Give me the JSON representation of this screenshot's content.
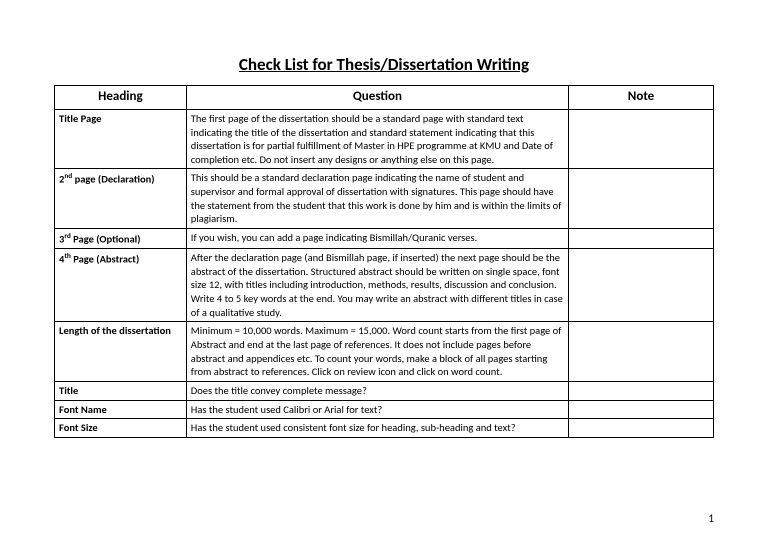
{
  "docTitle": "Check List for Thesis/Dissertation Writing",
  "columns": {
    "heading": "Heading",
    "question": "Question",
    "note": "Note"
  },
  "rows": [
    {
      "heading": "Title Page",
      "question": "The first page of the dissertation should be a standard page with standard text indicating the title of the dissertation and standard statement indicating that this dissertation is for partial fulfillment of Master in HPE programme at KMU and Date of completion etc.\nDo not insert any designs or anything else on this page."
    },
    {
      "heading": "2<sup>nd</sup> page (Declaration)",
      "question": "This should be a standard declaration page indicating the name of student and supervisor and formal approval of dissertation with signatures.\nThis page should have the statement from the student that this work is done by him and is within the limits of plagiarism."
    },
    {
      "heading": "3<sup>rd</sup> Page (Optional)",
      "question": "If you wish, you can add a page indicating Bismillah/Quranic verses."
    },
    {
      "heading": "4<sup>th</sup> Page (Abstract)",
      "question": "After the declaration page (and Bismillah page, if inserted) the next page should be the abstract of the dissertation. Structured abstract should be written on single space, font size 12, with titles including introduction, methods, results, discussion and conclusion. Write 4 to 5 key words at the end. You may write an abstract with different titles in case of a qualitative study."
    },
    {
      "heading": "Length of the dissertation",
      "question": "Minimum = 10,000 words. Maximum = 15,000.\nWord count starts from the first page of Abstract and end at the last page of references. It does not include pages before abstract and appendices etc. To count your words, make a block of all pages starting from abstract to references. Click on review icon and click on word count."
    },
    {
      "heading": "Title",
      "question": "Does the title convey complete message?"
    },
    {
      "heading": "Font Name",
      "question": "Has the student used Calibri or Arial for text?"
    },
    {
      "heading": "Font Size",
      "question": "Has the student used consistent font size for heading, sub-heading and text?"
    }
  ],
  "pageNumber": "1"
}
